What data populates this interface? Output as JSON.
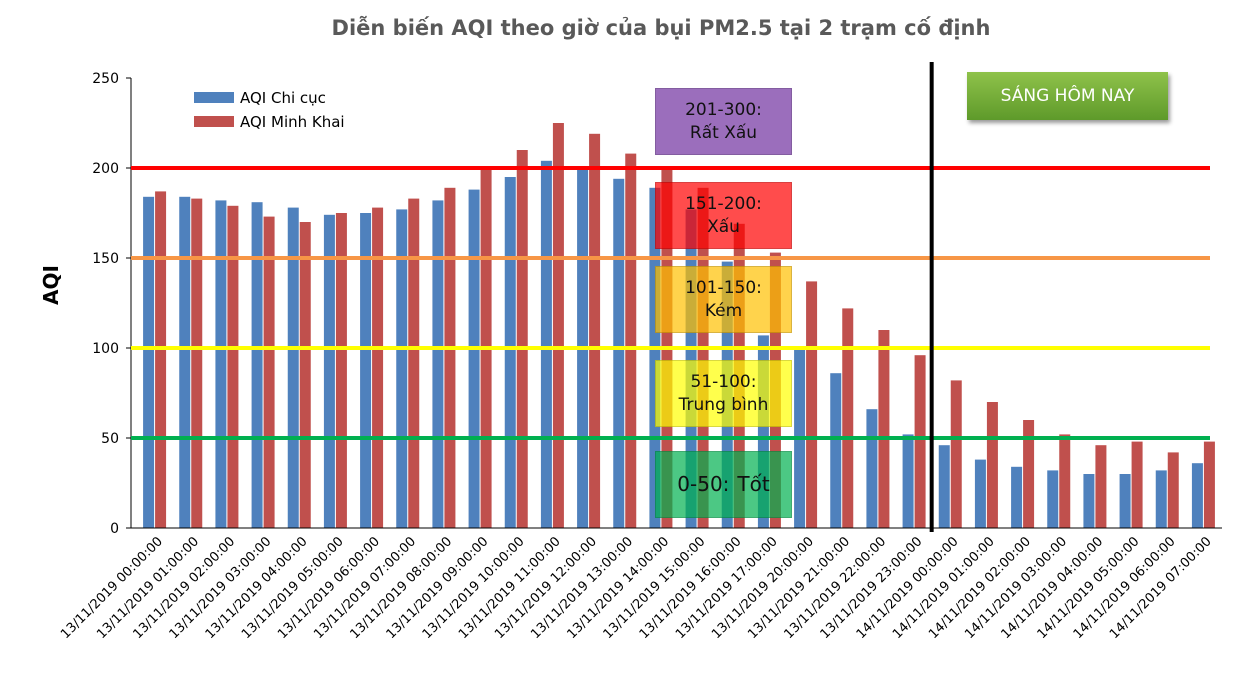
{
  "chart_data": {
    "type": "bar",
    "title": "Diễn biến AQI theo giờ của bụi PM2.5 tại 2 trạm cố định",
    "xlabel": "",
    "ylabel": "AQI",
    "ylim": [
      0,
      250
    ],
    "yticks": [
      0,
      50,
      100,
      150,
      200,
      250
    ],
    "grid": false,
    "legend_position": "top-left",
    "categories": [
      "13/11/2019 00:00:00",
      "13/11/2019 01:00:00",
      "13/11/2019 02:00:00",
      "13/11/2019 03:00:00",
      "13/11/2019 04:00:00",
      "13/11/2019 05:00:00",
      "13/11/2019 06:00:00",
      "13/11/2019 07:00:00",
      "13/11/2019 08:00:00",
      "13/11/2019 09:00:00",
      "13/11/2019 10:00:00",
      "13/11/2019 11:00:00",
      "13/11/2019 12:00:00",
      "13/11/2019 13:00:00",
      "13/11/2019 14:00:00",
      "13/11/2019 15:00:00",
      "13/11/2019 16:00:00",
      "13/11/2019 17:00:00",
      "13/11/2019 20:00:00",
      "13/11/2019 21:00:00",
      "13/11/2019 22:00:00",
      "13/11/2019 23:00:00",
      "14/11/2019 00:00:00",
      "14/11/2019 01:00:00",
      "14/11/2019 02:00:00",
      "14/11/2019 03:00:00",
      "14/11/2019 04:00:00",
      "14/11/2019 05:00:00",
      "14/11/2019 06:00:00",
      "14/11/2019 07:00:00"
    ],
    "series": [
      {
        "name": "AQI Chi cục",
        "color": "#4f81bd",
        "values": [
          184,
          184,
          182,
          181,
          178,
          174,
          175,
          177,
          182,
          188,
          195,
          204,
          200,
          194,
          189,
          177,
          148,
          107,
          100,
          86,
          66,
          52,
          46,
          38,
          34,
          32,
          30,
          30,
          32,
          36
        ]
      },
      {
        "name": "AQI Minh Khai",
        "color": "#c0504d",
        "values": [
          187,
          183,
          179,
          173,
          170,
          175,
          178,
          183,
          189,
          200,
          210,
          225,
          219,
          208,
          200,
          189,
          169,
          153,
          137,
          122,
          110,
          96,
          82,
          70,
          60,
          52,
          46,
          48,
          42,
          48
        ]
      }
    ],
    "threshold_lines": [
      {
        "value": 200,
        "color": "#ff0000"
      },
      {
        "value": 150,
        "color": "#f79646"
      },
      {
        "value": 100,
        "color": "#ffff00"
      },
      {
        "value": 50,
        "color": "#00b050"
      }
    ],
    "divider_after_category": "13/11/2019 23:00:00",
    "annotations": [
      {
        "range": "201-300:",
        "label": "Rất Xấu",
        "color": "rgba(112,48,160,0.7)"
      },
      {
        "range": "151-200:",
        "label": "Xấu",
        "color": "rgba(255,0,0,0.7)"
      },
      {
        "range": "101-150:",
        "label": "Kém",
        "color": "rgba(255,192,0,0.7)"
      },
      {
        "range": "51-100:",
        "label": "Trung bình",
        "color": "rgba(255,255,0,0.7)"
      },
      {
        "range": "0-50:",
        "label": "Tốt",
        "color": "rgba(0,176,80,0.7)"
      }
    ],
    "now_label": "SÁNG HÔM NAY"
  }
}
